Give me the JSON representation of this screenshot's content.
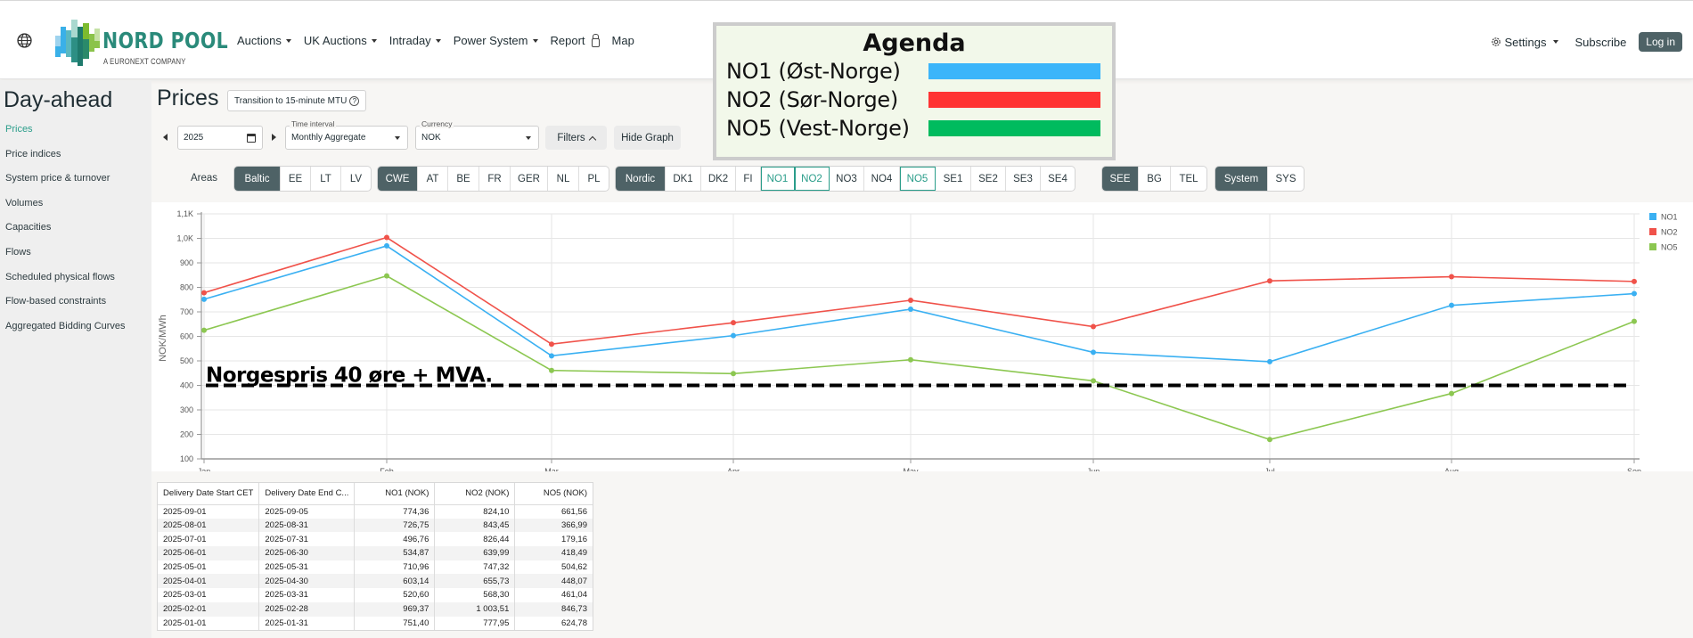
{
  "header": {
    "logo_text": "NORD POOL",
    "logo_subtext": "A EURONEXT COMPANY",
    "nav": [
      {
        "label": "Auctions",
        "dropdown": true
      },
      {
        "label": "UK Auctions",
        "dropdown": true
      },
      {
        "label": "Intraday",
        "dropdown": true
      },
      {
        "label": "Power System",
        "dropdown": true
      },
      {
        "label": "Report",
        "dropdown": false,
        "icon": "lock-icon"
      },
      {
        "label": "Map",
        "dropdown": false
      }
    ],
    "settings_label": "Settings",
    "subscribe_label": "Subscribe",
    "login_label": "Log in"
  },
  "agenda": {
    "title": "Agenda",
    "items": [
      {
        "label": "NO1 (Øst-Norge)",
        "color": "#3bb5fa"
      },
      {
        "label": "NO2 (Sør-Norge)",
        "color": "#ff3333"
      },
      {
        "label": "NO5 (Vest-Norge)",
        "color": "#00bb5e"
      }
    ]
  },
  "sidebar": {
    "title": "Day-ahead",
    "items": [
      {
        "label": "Prices",
        "active": true
      },
      {
        "label": "Price indices"
      },
      {
        "label": "System price & turnover"
      },
      {
        "label": "Volumes"
      },
      {
        "label": "Capacities"
      },
      {
        "label": "Flows"
      },
      {
        "label": "Scheduled physical flows"
      },
      {
        "label": "Flow-based constraints"
      },
      {
        "label": "Aggregated Bidding Curves"
      }
    ]
  },
  "main": {
    "title": "Prices",
    "mtu_button": "Transition to 15-minute MTU",
    "year_value": "2025",
    "time_interval": {
      "label": "Time interval",
      "value": "Monthly Aggregate"
    },
    "currency": {
      "label": "Currency",
      "value": "NOK"
    },
    "filters_label": "Filters",
    "hide_graph_label": "Hide Graph",
    "areas_label": "Areas",
    "area_groups": [
      {
        "group": "Baltic",
        "areas": [
          "EE",
          "LT",
          "LV"
        ],
        "selected": []
      },
      {
        "group": "CWE",
        "areas": [
          "AT",
          "BE",
          "FR",
          "GER",
          "NL",
          "PL"
        ],
        "selected": []
      },
      {
        "group": "Nordic",
        "areas": [
          "DK1",
          "DK2",
          "FI",
          "NO1",
          "NO2",
          "NO3",
          "NO4",
          "NO5",
          "SE1",
          "SE2",
          "SE3",
          "SE4"
        ],
        "selected": [
          "NO1",
          "NO2",
          "NO5"
        ]
      },
      {
        "group": "SEE",
        "areas": [
          "BG",
          "TEL"
        ],
        "selected": []
      },
      {
        "group": "System",
        "areas": [
          "SYS"
        ],
        "selected": []
      }
    ]
  },
  "chart_data": {
    "type": "line",
    "title": "",
    "xlabel": "",
    "ylabel": "NOK/MWh",
    "categories": [
      "Jan",
      "Feb",
      "Mar",
      "Apr",
      "May",
      "Jun",
      "Jul",
      "Aug",
      "Sep"
    ],
    "series": [
      {
        "name": "NO1",
        "color": "#3ab0f2",
        "values": [
          751.4,
          969.37,
          520.6,
          603.14,
          710.96,
          534.87,
          496.76,
          726.75,
          774.36
        ]
      },
      {
        "name": "NO2",
        "color": "#f0524a",
        "values": [
          777.95,
          1003.51,
          568.3,
          655.73,
          747.32,
          639.99,
          826.44,
          843.45,
          824.1
        ]
      },
      {
        "name": "NO5",
        "color": "#8cc751",
        "values": [
          624.78,
          846.73,
          461.04,
          448.07,
          504.62,
          418.49,
          179.16,
          366.99,
          661.56
        ]
      }
    ],
    "yticks": [
      "100",
      "200",
      "300",
      "400",
      "500",
      "600",
      "700",
      "800",
      "900",
      "1,0K",
      "1,1K"
    ],
    "ylim": [
      100,
      1100
    ],
    "grid": true,
    "legend_position": "right",
    "annotation": {
      "text": "Norgespris 40 øre + MVA.",
      "y": 400,
      "style": "dashed"
    }
  },
  "table": {
    "columns": [
      "Delivery Date Start CET",
      "Delivery Date End C...",
      "NO1 (NOK)",
      "NO2 (NOK)",
      "NO5 (NOK)"
    ],
    "rows": [
      [
        "2025-09-01",
        "2025-09-05",
        "774,36",
        "824,10",
        "661,56"
      ],
      [
        "2025-08-01",
        "2025-08-31",
        "726,75",
        "843,45",
        "366,99"
      ],
      [
        "2025-07-01",
        "2025-07-31",
        "496,76",
        "826,44",
        "179,16"
      ],
      [
        "2025-06-01",
        "2025-06-30",
        "534,87",
        "639,99",
        "418,49"
      ],
      [
        "2025-05-01",
        "2025-05-31",
        "710,96",
        "747,32",
        "504,62"
      ],
      [
        "2025-04-01",
        "2025-04-30",
        "603,14",
        "655,73",
        "448,07"
      ],
      [
        "2025-03-01",
        "2025-03-31",
        "520,60",
        "568,30",
        "461,04"
      ],
      [
        "2025-02-01",
        "2025-02-28",
        "969,37",
        "1 003,51",
        "846,73"
      ],
      [
        "2025-01-01",
        "2025-01-31",
        "751,40",
        "777,95",
        "624,78"
      ]
    ]
  }
}
